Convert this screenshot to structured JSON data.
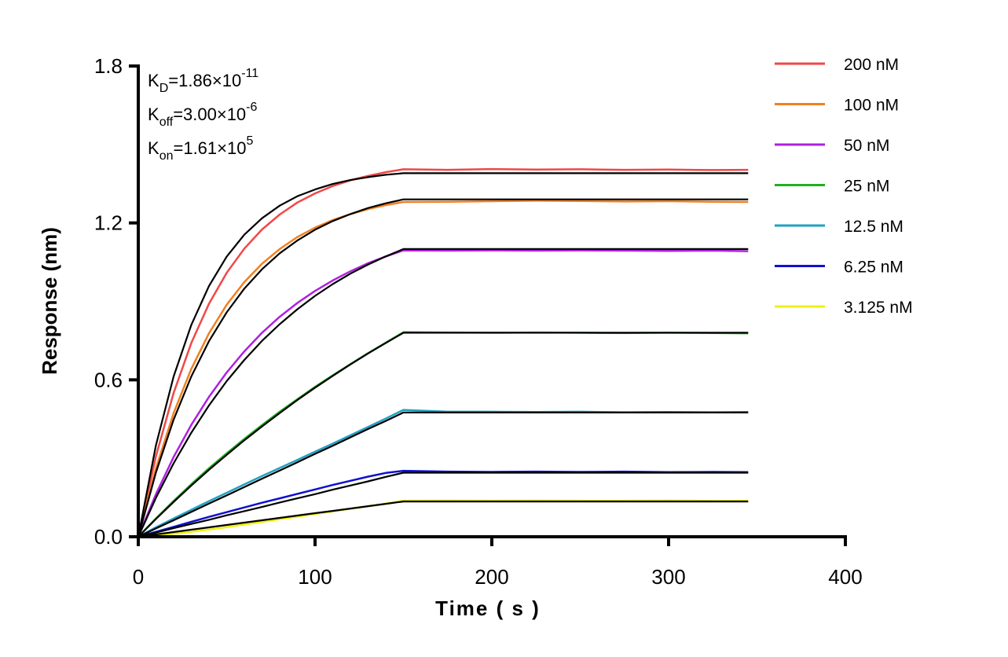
{
  "chart_data": {
    "type": "line",
    "title": "",
    "xlabel": "Time ( s )",
    "ylabel": "Response (nm)",
    "xlim": [
      0,
      400
    ],
    "ylim": [
      0,
      1.8
    ],
    "xticks": [
      "0",
      "100",
      "200",
      "300",
      "400"
    ],
    "yticks": [
      "0.0",
      "0.6",
      "1.2",
      "1.8"
    ],
    "grid": false,
    "legend_placement": "top-right",
    "fit_color": "#000000",
    "annotations": [
      {
        "sym": "K",
        "sub": "D",
        "val": "=1.86×10",
        "exp": "-11"
      },
      {
        "sym": "K",
        "sub": "off",
        "val": "=3.00×10",
        "exp": "-6"
      },
      {
        "sym": "K",
        "sub": "on",
        "val": "=1.61×10",
        "exp": "5"
      }
    ],
    "x": [
      0,
      10,
      20,
      30,
      40,
      50,
      60,
      70,
      80,
      90,
      100,
      110,
      120,
      130,
      140,
      150,
      175,
      200,
      225,
      250,
      275,
      300,
      325,
      345
    ],
    "series": [
      {
        "name": "200 nM",
        "color": "#f04848",
        "values": [
          0,
          0.308,
          0.55,
          0.741,
          0.891,
          1.009,
          1.102,
          1.175,
          1.232,
          1.278,
          1.313,
          1.341,
          1.363,
          1.38,
          1.394,
          1.405,
          1.403,
          1.406,
          1.404,
          1.405,
          1.403,
          1.404,
          1.402,
          1.403
        ],
        "fit": [
          0,
          0.35,
          0.613,
          0.81,
          0.959,
          1.071,
          1.155,
          1.218,
          1.266,
          1.302,
          1.328,
          1.349,
          1.364,
          1.375,
          1.384,
          1.39,
          1.39,
          1.39,
          1.39,
          1.39,
          1.39,
          1.39,
          1.39,
          1.39
        ]
      },
      {
        "name": "100 nM",
        "color": "#f08020",
        "values": [
          0,
          0.262,
          0.473,
          0.642,
          0.778,
          0.887,
          0.974,
          1.044,
          1.1,
          1.146,
          1.182,
          1.211,
          1.234,
          1.253,
          1.268,
          1.28,
          1.281,
          1.283,
          1.285,
          1.284,
          1.282,
          1.283,
          1.281,
          1.28
        ],
        "fit": [
          0,
          0.246,
          0.448,
          0.613,
          0.748,
          0.858,
          0.949,
          1.023,
          1.084,
          1.133,
          1.174,
          1.207,
          1.234,
          1.257,
          1.275,
          1.29,
          1.29,
          1.29,
          1.29,
          1.29,
          1.29,
          1.29,
          1.29,
          1.29
        ]
      },
      {
        "name": "50 nM",
        "color": "#b020e0",
        "values": [
          0,
          0.163,
          0.305,
          0.428,
          0.535,
          0.628,
          0.709,
          0.78,
          0.841,
          0.894,
          0.94,
          0.98,
          1.015,
          1.046,
          1.072,
          1.095,
          1.094,
          1.095,
          1.094,
          1.095,
          1.094,
          1.093,
          1.094,
          1.092
        ],
        "fit": [
          0,
          0.149,
          0.281,
          0.398,
          0.502,
          0.595,
          0.676,
          0.749,
          0.813,
          0.87,
          0.921,
          0.966,
          1.006,
          1.041,
          1.072,
          1.1,
          1.1,
          1.1,
          1.1,
          1.1,
          1.1,
          1.1,
          1.1,
          1.1
        ]
      },
      {
        "name": "25 nM",
        "color": "#20b020",
        "values": [
          0,
          0.07,
          0.137,
          0.201,
          0.262,
          0.319,
          0.374,
          0.427,
          0.478,
          0.526,
          0.573,
          0.617,
          0.66,
          0.702,
          0.742,
          0.782,
          0.781,
          0.78,
          0.781,
          0.78,
          0.779,
          0.78,
          0.779,
          0.778
        ],
        "fit": [
          0,
          0.068,
          0.133,
          0.196,
          0.256,
          0.313,
          0.369,
          0.422,
          0.473,
          0.523,
          0.57,
          0.615,
          0.659,
          0.701,
          0.741,
          0.78,
          0.78,
          0.78,
          0.78,
          0.78,
          0.78,
          0.78,
          0.78,
          0.78
        ]
      },
      {
        "name": "12.5 nM",
        "color": "#20a0c0",
        "values": [
          0,
          0.036,
          0.07,
          0.103,
          0.136,
          0.168,
          0.2,
          0.232,
          0.263,
          0.294,
          0.325,
          0.356,
          0.388,
          0.42,
          0.452,
          0.485,
          0.478,
          0.478,
          0.477,
          0.478,
          0.476,
          0.477,
          0.476,
          0.477
        ],
        "fit": [
          0,
          0.032,
          0.063,
          0.095,
          0.127,
          0.158,
          0.19,
          0.222,
          0.253,
          0.285,
          0.317,
          0.348,
          0.38,
          0.412,
          0.443,
          0.475,
          0.475,
          0.475,
          0.475,
          0.475,
          0.475,
          0.475,
          0.475,
          0.475
        ]
      },
      {
        "name": "6.25 nM",
        "color": "#1010d0",
        "values": [
          0,
          0.019,
          0.038,
          0.057,
          0.076,
          0.094,
          0.112,
          0.13,
          0.147,
          0.164,
          0.181,
          0.198,
          0.214,
          0.23,
          0.244,
          0.252,
          0.249,
          0.248,
          0.249,
          0.248,
          0.249,
          0.247,
          0.248,
          0.247
        ],
        "fit": [
          0,
          0.016,
          0.033,
          0.049,
          0.065,
          0.082,
          0.098,
          0.114,
          0.131,
          0.147,
          0.163,
          0.18,
          0.196,
          0.212,
          0.229,
          0.245,
          0.245,
          0.245,
          0.245,
          0.245,
          0.245,
          0.245,
          0.245,
          0.245
        ]
      },
      {
        "name": "3.125 nM",
        "color": "#f0f010",
        "values": [
          0,
          0.004,
          0.011,
          0.019,
          0.028,
          0.037,
          0.047,
          0.057,
          0.067,
          0.077,
          0.087,
          0.097,
          0.107,
          0.117,
          0.127,
          0.138,
          0.139,
          0.138,
          0.139,
          0.138,
          0.138,
          0.139,
          0.137,
          0.138
        ],
        "fit": [
          0,
          0.009,
          0.018,
          0.027,
          0.036,
          0.045,
          0.054,
          0.063,
          0.072,
          0.081,
          0.09,
          0.099,
          0.108,
          0.117,
          0.126,
          0.135,
          0.135,
          0.135,
          0.135,
          0.135,
          0.135,
          0.135,
          0.135,
          0.135
        ]
      }
    ]
  }
}
